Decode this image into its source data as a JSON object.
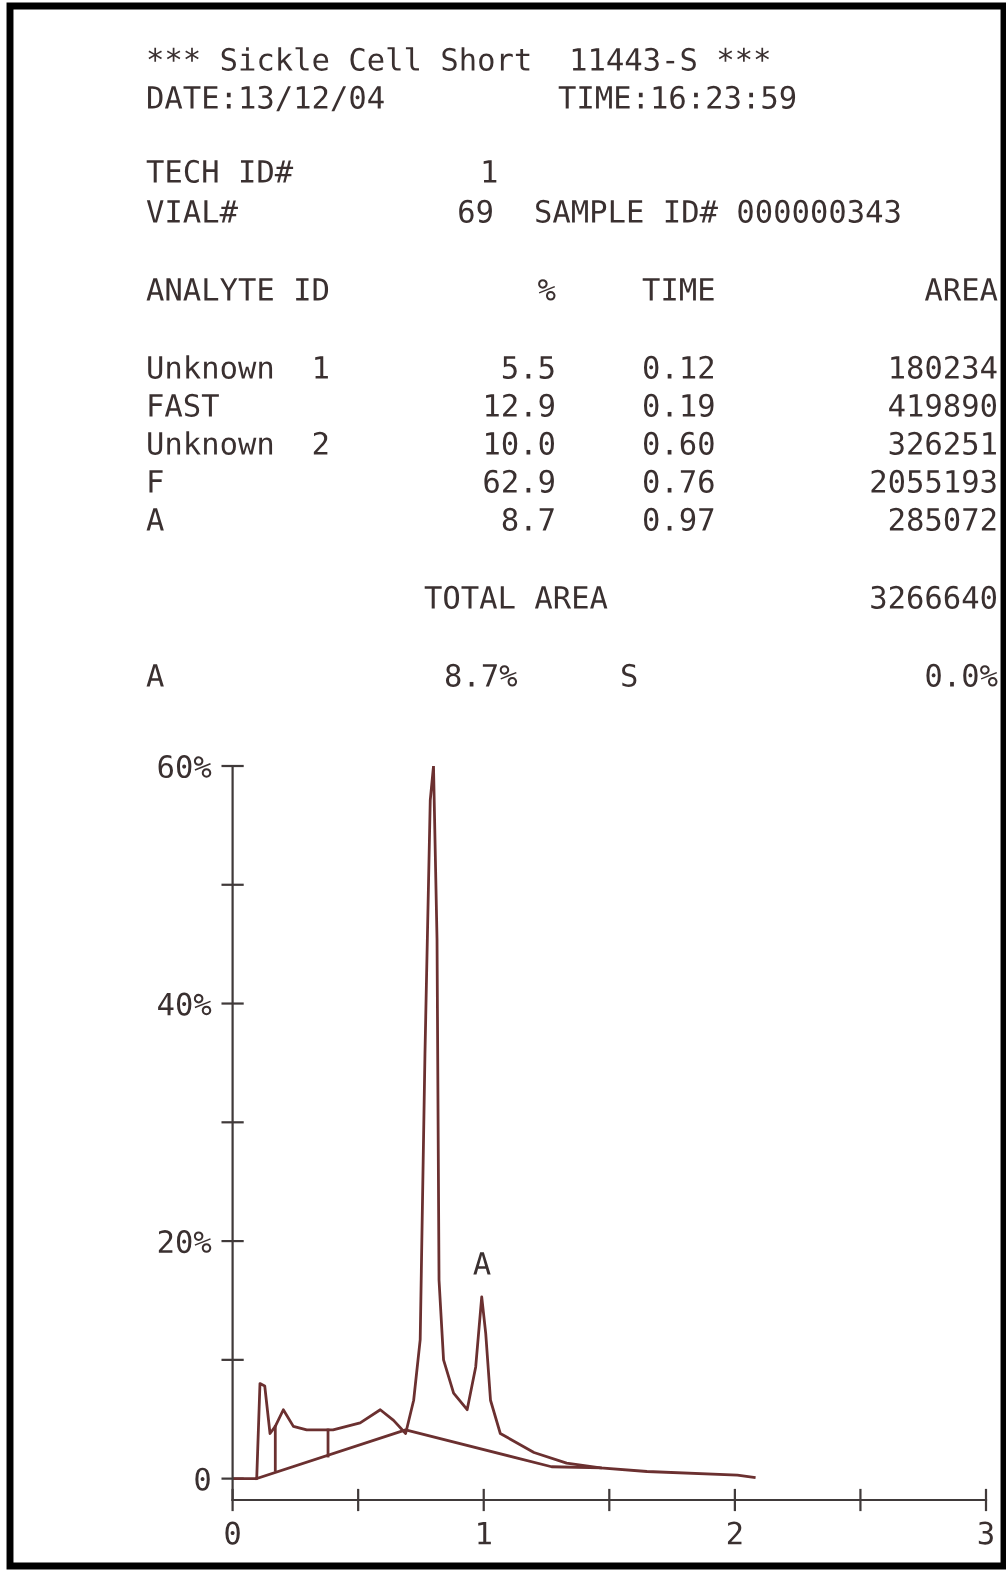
{
  "chart_data": {
    "type": "line",
    "annotations": [
      "*** Sickle Cell Short  11443-S ***",
      "DATE:13/12/04",
      "TIME:16:23:59",
      "TECH ID#",
      "1",
      "VIAL#",
      "69",
      "SAMPLE ID# 000000343",
      "ANALYTE ID",
      "%",
      "TIME",
      "AREA",
      "Unknown  1",
      "5.5",
      "0.12",
      "180234",
      "FAST",
      "12.9",
      "0.19",
      "419890",
      "Unknown  2",
      "10.0",
      "0.60",
      "326251",
      "F",
      "62.9",
      "0.76",
      "2055193",
      "A",
      "8.7",
      "0.97",
      "285072",
      "TOTAL AREA",
      "3266640",
      "A",
      "8.7%",
      "S",
      "0.0%",
      "A"
    ],
    "series": [
      {
        "color": "#6b3030",
        "x": [
          0,
          0.096,
          0.109,
          0.128,
          0.149,
          0.17,
          0.202,
          0.242,
          0.295,
          0.4,
          0.508,
          0.588,
          0.641,
          0.689,
          0.721,
          0.747,
          0.766,
          0.787,
          0.8,
          0.814,
          0.822,
          0.84,
          0.88,
          0.934,
          0.968,
          0.992,
          1.008,
          1.027,
          1.066,
          1.2,
          1.33,
          1.465,
          1.65,
          2.01,
          2.077
        ],
        "values": [
          0,
          0,
          8.0,
          7.8,
          3.8,
          4.4,
          5.8,
          4.4,
          4.1,
          4.1,
          4.7,
          5.8,
          4.9,
          3.8,
          6.6,
          11.7,
          35.8,
          57.1,
          60,
          45.4,
          16.7,
          10.0,
          7.2,
          5.8,
          9.4,
          15.3,
          12.2,
          6.6,
          3.8,
          2.2,
          1.3,
          0.9,
          0.6,
          0.3,
          0.1
        ]
      },
      {
        "color": "#6b3030",
        "x": [
          0.096,
          0.689,
          1.27,
          1.465
        ],
        "values": [
          0,
          4.1,
          1.0,
          0.9
        ]
      },
      {
        "color": "#6b3030",
        "x": [
          0.17,
          0.17
        ],
        "values": [
          0.7,
          4.4
        ]
      },
      {
        "color": "#6b3030",
        "x": [
          0.38,
          0.38
        ],
        "values": [
          1.9,
          4.1
        ]
      }
    ],
    "xlim": [
      0,
      3
    ],
    "ylim": [
      -1.8,
      60
    ],
    "xticks": [
      0,
      {
        "value": 0.5,
        "label": null
      },
      1,
      {
        "value": 1.5,
        "label": null
      },
      2,
      {
        "value": 2.5,
        "label": null
      },
      3
    ],
    "yticks": [
      {
        "value": 0,
        "label": "0"
      },
      {
        "value": 10,
        "label": null
      },
      {
        "value": 20,
        "label": "20%"
      },
      {
        "value": 30,
        "label": null
      },
      {
        "value": 40,
        "label": "40%"
      },
      {
        "value": 50,
        "label": null
      },
      {
        "value": 60,
        "label": "60%"
      }
    ],
    "grid": false,
    "marker": "none",
    "line_style": "solid"
  }
}
